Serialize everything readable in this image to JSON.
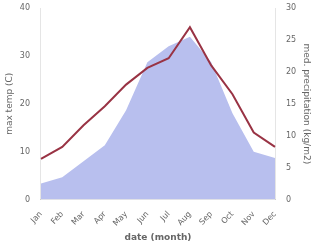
{
  "chart_data": {
    "type": "line",
    "x_label": "date (month)",
    "y_label": "max temp (C)",
    "y2_label": "med. precipitation (kg/m2)",
    "categories": [
      "Jan",
      "Feb",
      "Mar",
      "Apr",
      "May",
      "Jun",
      "Jul",
      "Aug",
      "Sep",
      "Oct",
      "Nov",
      "Dec"
    ],
    "series": [
      {
        "type": "line",
        "color": "#993344",
        "values": [
          8.5,
          11.0,
          15.5,
          19.5,
          24.0,
          27.5,
          29.5,
          36.0,
          28.0,
          22.0,
          14.0,
          11.0
        ]
      },
      {
        "type": "area",
        "color": "#b8bfee",
        "axis": "y2",
        "values": [
          2.5,
          3.5,
          6.0,
          8.5,
          14.0,
          21.5,
          24.0,
          25.5,
          21.5,
          13.5,
          7.5,
          6.5
        ]
      }
    ],
    "ylim": [
      0,
      40
    ],
    "yticks": [
      0,
      10,
      20,
      30,
      40
    ],
    "y2lim": [
      0,
      30
    ],
    "y2ticks": [
      0,
      5,
      10,
      15,
      20,
      25,
      30
    ],
    "grid": false
  }
}
